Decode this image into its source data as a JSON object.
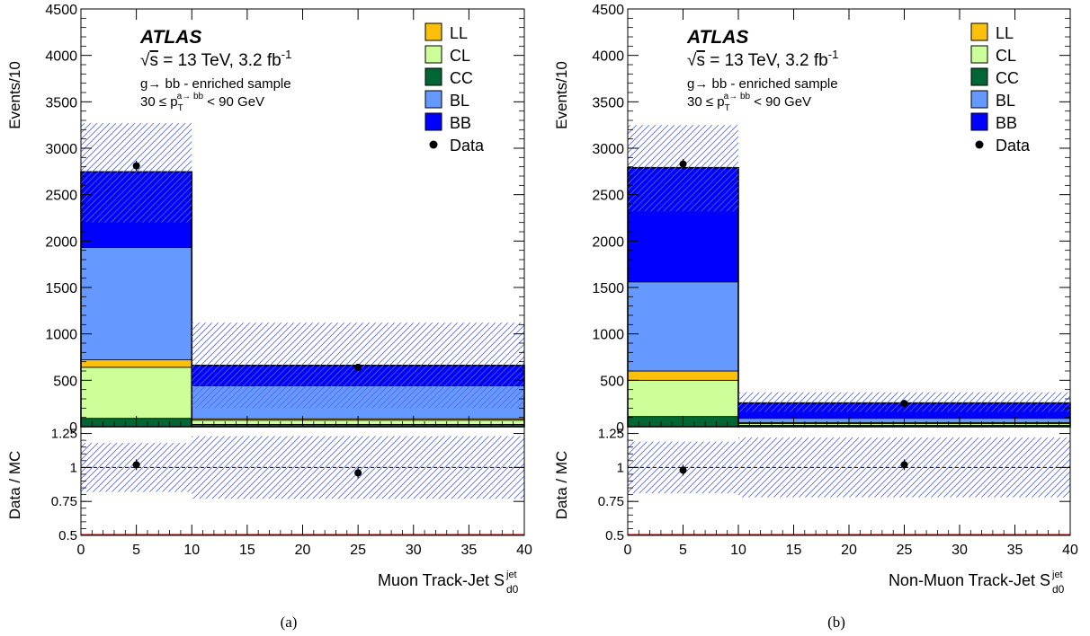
{
  "colors": {
    "LL": "#fbc00a",
    "CL": "#ccff99",
    "CC": "#006633",
    "BL": "#6699ff",
    "BB": "#0000ff",
    "uncertainty_hatch": "#5566dd",
    "data_marker": "#000000"
  },
  "chart_data": [
    {
      "type": "bar",
      "stacked": true,
      "caption": "(a)",
      "atlas_label": "ATLAS",
      "energy_label_prefix": "s",
      "energy_label_body": " = 13 TeV, 3.2 fb",
      "energy_label_sup": "-1",
      "sample_label": "g→ bb - enriched sample",
      "cut_label_left": "30 ≤ p",
      "cut_label_sub": "T",
      "cut_label_sup": "a→ bb",
      "cut_label_right": " < 90 GeV",
      "xlabel": "Muon Track-Jet S",
      "xlabel_sub": "d0",
      "xlabel_sup": "jet",
      "ylabel": "Events/10",
      "ratio_ylabel": "Data / MC",
      "xlim": [
        0,
        40
      ],
      "ylim": [
        0,
        4500
      ],
      "ratio_ylim": [
        0.5,
        1.25
      ],
      "x_ticks": [
        "0",
        "5",
        "10",
        "15",
        "20",
        "25",
        "30",
        "35",
        "40"
      ],
      "y_ticks": [
        "0",
        "500",
        "1000",
        "1500",
        "2000",
        "2500",
        "3000",
        "3500",
        "4000",
        "4500"
      ],
      "ratio_y_ticks": [
        "0.5",
        "0.75",
        "1",
        "1.25"
      ],
      "bins": [
        [
          0,
          10
        ],
        [
          10,
          40
        ]
      ],
      "series": [
        {
          "name": "CC",
          "values": [
            90,
            25
          ]
        },
        {
          "name": "CL",
          "values": [
            550,
            45
          ]
        },
        {
          "name": "LL",
          "values": [
            80,
            15
          ]
        },
        {
          "name": "BL",
          "values": [
            1210,
            355
          ]
        },
        {
          "name": "BB",
          "values": [
            815,
            220
          ]
        }
      ],
      "mc_uncertainty_band": [
        [
          2200,
          3270
        ],
        [
          200,
          1120
        ]
      ],
      "data": {
        "name": "Data",
        "x": [
          5,
          25
        ],
        "y": [
          2810,
          640
        ],
        "yerr": [
          55,
          28
        ]
      },
      "ratio": {
        "x": [
          5,
          25
        ],
        "y": [
          1.02,
          0.96
        ],
        "band": [
          [
            0.82,
            1.18
          ],
          [
            0.77,
            1.23
          ]
        ]
      },
      "legend": [
        "LL",
        "CL",
        "CC",
        "BL",
        "BB",
        "Data"
      ],
      "legend_position": "top-right"
    },
    {
      "type": "bar",
      "stacked": true,
      "caption": "(b)",
      "atlas_label": "ATLAS",
      "energy_label_prefix": "s",
      "energy_label_body": " = 13 TeV, 3.2 fb",
      "energy_label_sup": "-1",
      "sample_label": "g→ bb - enriched sample",
      "cut_label_left": "30 ≤ p",
      "cut_label_sub": "T",
      "cut_label_sup": "a→ bb",
      "cut_label_right": " < 90 GeV",
      "xlabel": "Non-Muon Track-Jet S",
      "xlabel_sub": "d0",
      "xlabel_sup": "jet",
      "ylabel": "Events/10",
      "ratio_ylabel": "Data / MC",
      "xlim": [
        0,
        40
      ],
      "ylim": [
        0,
        4500
      ],
      "ratio_ylim": [
        0.5,
        1.25
      ],
      "x_ticks": [
        "0",
        "5",
        "10",
        "15",
        "20",
        "25",
        "30",
        "35",
        "40"
      ],
      "y_ticks": [
        "0",
        "500",
        "1000",
        "1500",
        "2000",
        "2500",
        "3000",
        "3500",
        "4000",
        "4500"
      ],
      "ratio_y_ticks": [
        "0.5",
        "0.75",
        "1",
        "1.25"
      ],
      "bins": [
        [
          0,
          10
        ],
        [
          10,
          40
        ]
      ],
      "series": [
        {
          "name": "CC",
          "values": [
            110,
            15
          ]
        },
        {
          "name": "CL",
          "values": [
            390,
            20
          ]
        },
        {
          "name": "LL",
          "values": [
            100,
            10
          ]
        },
        {
          "name": "BL",
          "values": [
            960,
            45
          ]
        },
        {
          "name": "BB",
          "values": [
            1230,
            165
          ]
        }
      ],
      "mc_uncertainty_band": [
        [
          2320,
          3250
        ],
        [
          160,
          370
        ]
      ],
      "data": {
        "name": "Data",
        "x": [
          5,
          25
        ],
        "y": [
          2830,
          250
        ],
        "yerr": [
          55,
          16
        ]
      },
      "ratio": {
        "x": [
          5,
          25
        ],
        "y": [
          0.98,
          1.02
        ],
        "band": [
          [
            0.81,
            1.19
          ],
          [
            0.78,
            1.22
          ]
        ]
      },
      "legend": [
        "LL",
        "CL",
        "CC",
        "BL",
        "BB",
        "Data"
      ],
      "legend_position": "top-right"
    }
  ]
}
